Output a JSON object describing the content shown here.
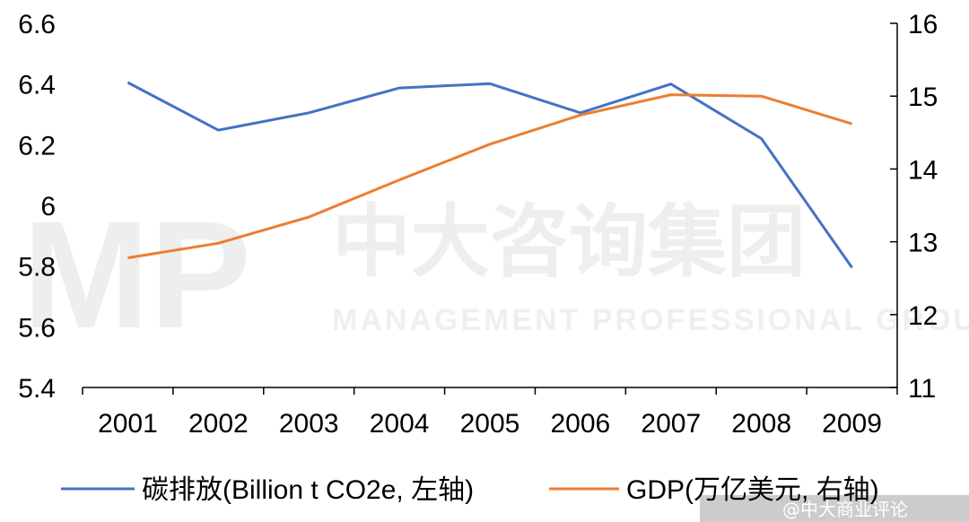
{
  "chart_data": {
    "type": "line",
    "categories": [
      "2001",
      "2002",
      "2003",
      "2004",
      "2005",
      "2006",
      "2007",
      "2008",
      "2009"
    ],
    "y_left": {
      "ylim": [
        5.4,
        6.6
      ],
      "ticks": [
        "5.4",
        "5.6",
        "5.8",
        "6",
        "6.2",
        "6.4",
        "6.6"
      ]
    },
    "y_right": {
      "ylim": [
        11,
        16
      ],
      "ticks": [
        "11",
        "12",
        "13",
        "14",
        "15",
        "16"
      ]
    },
    "series": [
      {
        "name": "碳排放(Billion t CO2e, 左轴)",
        "axis": "left",
        "color": "#4472c4",
        "values": [
          6.405,
          6.248,
          6.305,
          6.387,
          6.401,
          6.305,
          6.4,
          6.22,
          5.795
        ]
      },
      {
        "name": "GDP(万亿美元, 右轴)",
        "axis": "right",
        "color": "#ed7d31",
        "values": [
          12.78,
          12.98,
          13.34,
          13.85,
          14.34,
          14.74,
          15.02,
          15.0,
          14.62
        ]
      }
    ],
    "grid": false,
    "legend_position": "bottom"
  },
  "watermark": {
    "logo": "MP",
    "chinese": "中大咨询集团",
    "english": "MANAGEMENT PROFESSIONAL GROUP"
  },
  "credit": "@中大商业评论"
}
